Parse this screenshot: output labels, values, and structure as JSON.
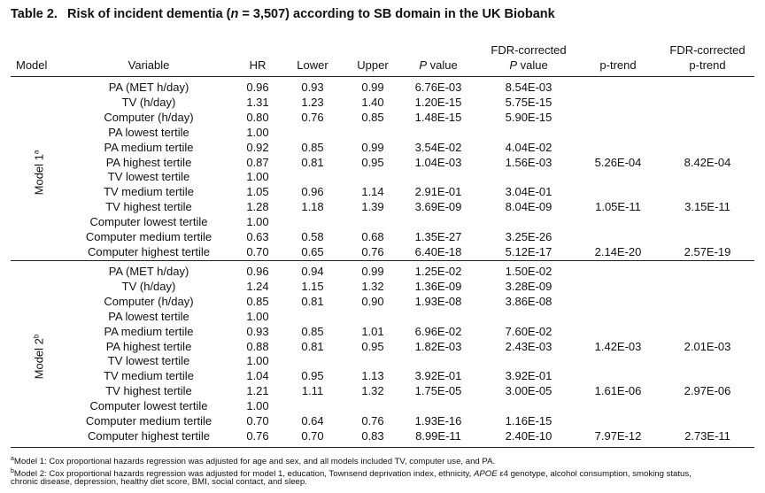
{
  "title": {
    "number": "Table 2.",
    "pre": "Risk of incident dementia (",
    "n_var": "n",
    "post": " = 3,507) according to SB domain in the UK Biobank"
  },
  "headers": {
    "model": "Model",
    "variable": "Variable",
    "hr": "HR",
    "lower": "Lower",
    "upper": "Upper",
    "p_italic": "P",
    "p_value": " value",
    "fdr_line1": "FDR-corrected",
    "fdr_p_italic": "P",
    "fdr_p_value": " value",
    "ptrend": "p-trend",
    "fdr_ptrend_line1": "FDR-corrected",
    "fdr_ptrend_line2": "p-trend"
  },
  "models": [
    {
      "label": "Model 1",
      "sup": "a",
      "rows": [
        {
          "variable": "PA (MET h/day)",
          "hr": "0.96",
          "lower": "0.93",
          "upper": "0.99",
          "p": "6.76E-03",
          "fdr_p": "8.54E-03",
          "ptrend": "",
          "fdr_ptrend": ""
        },
        {
          "variable": "TV (h/day)",
          "hr": "1.31",
          "lower": "1.23",
          "upper": "1.40",
          "p": "1.20E-15",
          "fdr_p": "5.75E-15",
          "ptrend": "",
          "fdr_ptrend": ""
        },
        {
          "variable": "Computer (h/day)",
          "hr": "0.80",
          "lower": "0.76",
          "upper": "0.85",
          "p": "1.48E-15",
          "fdr_p": "5.90E-15",
          "ptrend": "",
          "fdr_ptrend": ""
        },
        {
          "variable": "PA lowest tertile",
          "hr": "1.00",
          "lower": "",
          "upper": "",
          "p": "",
          "fdr_p": "",
          "ptrend": "",
          "fdr_ptrend": ""
        },
        {
          "variable": "PA medium tertile",
          "hr": "0.92",
          "lower": "0.85",
          "upper": "0.99",
          "p": "3.54E-02",
          "fdr_p": "4.04E-02",
          "ptrend": "",
          "fdr_ptrend": ""
        },
        {
          "variable": "PA highest tertile",
          "hr": "0.87",
          "lower": "0.81",
          "upper": "0.95",
          "p": "1.04E-03",
          "fdr_p": "1.56E-03",
          "ptrend": "5.26E-04",
          "fdr_ptrend": "8.42E-04"
        },
        {
          "variable": "TV lowest tertile",
          "hr": "1.00",
          "lower": "",
          "upper": "",
          "p": "",
          "fdr_p": "",
          "ptrend": "",
          "fdr_ptrend": ""
        },
        {
          "variable": "TV medium tertile",
          "hr": "1.05",
          "lower": "0.96",
          "upper": "1.14",
          "p": "2.91E-01",
          "fdr_p": "3.04E-01",
          "ptrend": "",
          "fdr_ptrend": ""
        },
        {
          "variable": "TV highest tertile",
          "hr": "1.28",
          "lower": "1.18",
          "upper": "1.39",
          "p": "3.69E-09",
          "fdr_p": "8.04E-09",
          "ptrend": "1.05E-11",
          "fdr_ptrend": "3.15E-11"
        },
        {
          "variable": "Computer lowest tertile",
          "hr": "1.00",
          "lower": "",
          "upper": "",
          "p": "",
          "fdr_p": "",
          "ptrend": "",
          "fdr_ptrend": ""
        },
        {
          "variable": "Computer medium tertile",
          "hr": "0.63",
          "lower": "0.58",
          "upper": "0.68",
          "p": "1.35E-27",
          "fdr_p": "3.25E-26",
          "ptrend": "",
          "fdr_ptrend": ""
        },
        {
          "variable": "Computer highest tertile",
          "hr": "0.70",
          "lower": "0.65",
          "upper": "0.76",
          "p": "6.40E-18",
          "fdr_p": "5.12E-17",
          "ptrend": "2.14E-20",
          "fdr_ptrend": "2.57E-19"
        }
      ]
    },
    {
      "label": "Model 2",
      "sup": "b",
      "rows": [
        {
          "variable": "PA (MET h/day)",
          "hr": "0.96",
          "lower": "0.94",
          "upper": "0.99",
          "p": "1.25E-02",
          "fdr_p": "1.50E-02",
          "ptrend": "",
          "fdr_ptrend": ""
        },
        {
          "variable": "TV (h/day)",
          "hr": "1.24",
          "lower": "1.15",
          "upper": "1.32",
          "p": "1.36E-09",
          "fdr_p": "3.28E-09",
          "ptrend": "",
          "fdr_ptrend": ""
        },
        {
          "variable": "Computer (h/day)",
          "hr": "0.85",
          "lower": "0.81",
          "upper": "0.90",
          "p": "1.93E-08",
          "fdr_p": "3.86E-08",
          "ptrend": "",
          "fdr_ptrend": ""
        },
        {
          "variable": "PA lowest tertile",
          "hr": "1.00",
          "lower": "",
          "upper": "",
          "p": "",
          "fdr_p": "",
          "ptrend": "",
          "fdr_ptrend": ""
        },
        {
          "variable": "PA medium tertile",
          "hr": "0.93",
          "lower": "0.85",
          "upper": "1.01",
          "p": "6.96E-02",
          "fdr_p": "7.60E-02",
          "ptrend": "",
          "fdr_ptrend": ""
        },
        {
          "variable": "PA highest tertile",
          "hr": "0.88",
          "lower": "0.81",
          "upper": "0.95",
          "p": "1.82E-03",
          "fdr_p": "2.43E-03",
          "ptrend": "1.42E-03",
          "fdr_ptrend": "2.01E-03"
        },
        {
          "variable": "TV lowest tertile",
          "hr": "1.00",
          "lower": "",
          "upper": "",
          "p": "",
          "fdr_p": "",
          "ptrend": "",
          "fdr_ptrend": ""
        },
        {
          "variable": "TV medium tertile",
          "hr": "1.04",
          "lower": "0.95",
          "upper": "1.13",
          "p": "3.92E-01",
          "fdr_p": "3.92E-01",
          "ptrend": "",
          "fdr_ptrend": ""
        },
        {
          "variable": "TV highest tertile",
          "hr": "1.21",
          "lower": "1.11",
          "upper": "1.32",
          "p": "1.75E-05",
          "fdr_p": "3.00E-05",
          "ptrend": "1.61E-06",
          "fdr_ptrend": "2.97E-06"
        },
        {
          "variable": "Computer lowest tertile",
          "hr": "1.00",
          "lower": "",
          "upper": "",
          "p": "",
          "fdr_p": "",
          "ptrend": "",
          "fdr_ptrend": ""
        },
        {
          "variable": "Computer medium tertile",
          "hr": "0.70",
          "lower": "0.64",
          "upper": "0.76",
          "p": "1.93E-16",
          "fdr_p": "1.16E-15",
          "ptrend": "",
          "fdr_ptrend": ""
        },
        {
          "variable": "Computer highest tertile",
          "hr": "0.76",
          "lower": "0.70",
          "upper": "0.83",
          "p": "8.99E-11",
          "fdr_p": "2.40E-10",
          "ptrend": "7.97E-12",
          "fdr_ptrend": "2.73E-11"
        }
      ]
    }
  ],
  "footnotes": {
    "a_sup": "a",
    "a_text": "Model 1: Cox proportional hazards regression was adjusted for age and sex, and all models included TV, computer use, and PA.",
    "b_sup": "b",
    "b_text_pre": "Model 2: Cox proportional hazards regression was adjusted for model 1, education, Townsend deprivation index, ethnicity, ",
    "b_text_italic": "APOE",
    "b_text_post": " ε4 genotype, alcohol consumption, smoking status,",
    "b_text_line2": "chronic disease, depression, healthy diet score, BMI, social contact, and sleep."
  }
}
